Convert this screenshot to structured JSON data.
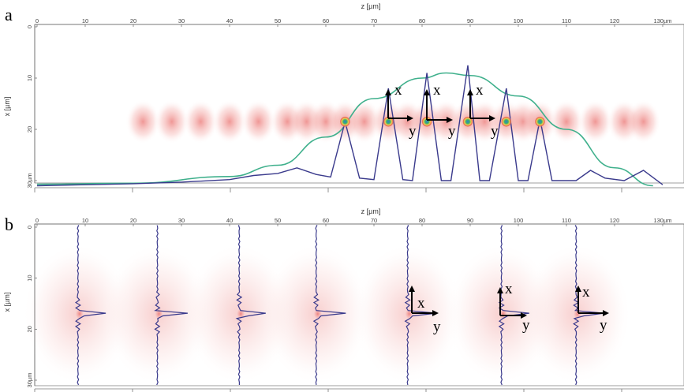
{
  "panels": [
    {
      "label": "a",
      "xlabel": "z [µm]",
      "ylabel": "x [µm]",
      "x_ticks": [
        "0",
        "10",
        "20",
        "30",
        "40",
        "50",
        "60",
        "70",
        "80",
        "90",
        "100",
        "110",
        "120",
        "130µm"
      ],
      "y_ticks": [
        "0",
        "10",
        "20",
        "30µm"
      ],
      "vector_labels": {
        "x": "x",
        "y": "y"
      }
    },
    {
      "label": "b",
      "xlabel": "z [µm]",
      "ylabel": "x [µm]",
      "x_ticks": [
        "0",
        "10",
        "20",
        "30",
        "40",
        "50",
        "60",
        "70",
        "80",
        "90",
        "100",
        "110",
        "120",
        "130µm"
      ],
      "y_ticks": [
        "0",
        "10",
        "20",
        "30µm"
      ],
      "vector_labels": {
        "x": "x",
        "y": "y"
      }
    }
  ],
  "colors": {
    "profile": "#3a3a8c",
    "envelope": "#3fb08c",
    "intensity": "#e3423f",
    "focus": "#2a7fd0"
  },
  "chart_data": [
    {
      "type": "line",
      "panel": "a",
      "xlabel": "z [µm]",
      "ylabel": "x [µm]",
      "xlim": [
        0,
        130
      ],
      "ylim": [
        0,
        30
      ],
      "series": [
        {
          "x": [
            0,
            10,
            20,
            30,
            40,
            45,
            50,
            54,
            58,
            61,
            64,
            67,
            70,
            73,
            76,
            78,
            81,
            84,
            86,
            89.5,
            92,
            94,
            97.5,
            100,
            102,
            104.5,
            107,
            112,
            115,
            118,
            122,
            126,
            130
          ],
          "y": [
            31,
            30.8,
            30.6,
            30.3,
            29.8,
            29,
            28.6,
            27.5,
            28.8,
            29.3,
            18.5,
            29.5,
            29.8,
            12,
            29.8,
            30,
            9,
            30,
            30,
            7.5,
            30,
            30,
            12,
            30,
            30,
            18,
            30,
            30,
            28,
            29.5,
            30,
            28,
            30.8
          ]
        },
        {
          "x": [
            0,
            20,
            40,
            50,
            60,
            70,
            80,
            85,
            90,
            100,
            110,
            120,
            128
          ],
          "y": [
            30.7,
            30.5,
            29.2,
            27,
            21.5,
            14,
            10,
            9,
            9.5,
            13.5,
            20,
            27.5,
            31
          ]
        }
      ],
      "markers_x": [
        64,
        73,
        81,
        89.5,
        97.5,
        104.5
      ],
      "markers_y": 18.5
    },
    {
      "type": "line",
      "panel": "b",
      "xlabel": "z [µm]",
      "ylabel": "x [µm]",
      "xlim": [
        0,
        130
      ],
      "ylim": [
        0,
        30
      ],
      "profile_positions_z": [
        8.5,
        25,
        42,
        58,
        77,
        96.5,
        112
      ],
      "peak_x": 17,
      "peak_width_z": 7
    }
  ]
}
